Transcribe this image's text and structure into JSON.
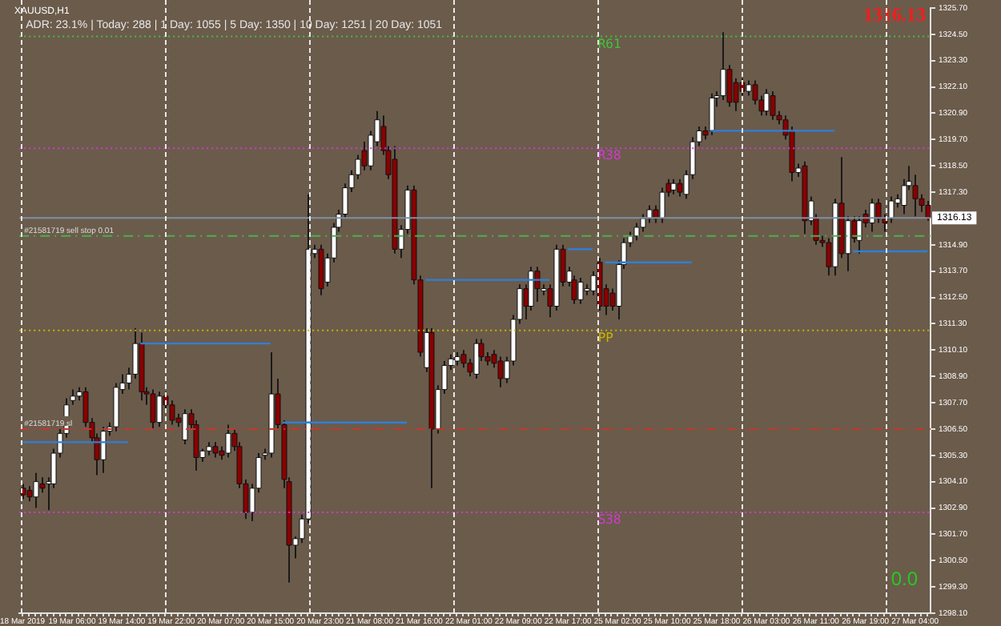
{
  "chart_data": {
    "type": "candlestick",
    "title": "XAUUSD,H1",
    "annotations": [
      "ADR: 23.1% | Today: 288 | 1 Day: 1055 | 5 Day: 1350 | 10 Day: 1251 | 20 Day: 1051",
      "1316.13",
      "0.0"
    ],
    "categories": [
      "18 Mar 2019",
      null,
      null,
      null,
      null,
      null,
      null,
      null,
      "19 Mar 06:00",
      null,
      null,
      null,
      null,
      null,
      null,
      null,
      "19 Mar 14:00",
      null,
      null,
      null,
      null,
      null,
      null,
      null,
      "19 Mar 22:00",
      null,
      null,
      null,
      null,
      null,
      null,
      null,
      "20 Mar 07:00",
      null,
      null,
      null,
      null,
      null,
      null,
      null,
      "20 Mar 15:00",
      null,
      null,
      null,
      null,
      null,
      null,
      null,
      "20 Mar 23:00",
      null,
      null,
      null,
      null,
      null,
      null,
      null,
      "21 Mar 08:00",
      null,
      null,
      null,
      null,
      null,
      null,
      null,
      "21 Mar 16:00",
      null,
      null,
      null,
      null,
      null,
      null,
      null,
      "22 Mar 01:00",
      null,
      null,
      null,
      null,
      null,
      null,
      null,
      "22 Mar 09:00",
      null,
      null,
      null,
      null,
      null,
      null,
      null,
      "22 Mar 17:00",
      null,
      null,
      null,
      null,
      null,
      null,
      null,
      "25 Mar 02:00",
      null,
      null,
      null,
      null,
      null,
      null,
      null,
      "25 Mar 10:00",
      null,
      null,
      null,
      null,
      null,
      null,
      null,
      "25 Mar 18:00",
      null,
      null,
      null,
      null,
      null,
      null,
      null,
      "26 Mar 03:00",
      null,
      null,
      null,
      null,
      null,
      null,
      null,
      "26 Mar 11:00",
      null,
      null,
      null,
      null,
      null,
      null,
      null,
      "26 Mar 19:00",
      null,
      null,
      null,
      null,
      null,
      null,
      null,
      "27 Mar 04:00",
      null,
      null
    ],
    "ohlc": [
      [
        1303.8,
        1304.0,
        1303.3,
        1303.5
      ],
      [
        1303.7,
        1303.9,
        1303.2,
        1303.4
      ],
      [
        1303.4,
        1304.5,
        1302.9,
        1304.1
      ],
      [
        1304.0,
        1304.3,
        1303.6,
        1303.8
      ],
      [
        1304.0,
        1304.3,
        1302.8,
        1304.1
      ],
      [
        1304.0,
        1305.6,
        1303.8,
        1305.4
      ],
      [
        1305.4,
        1306.5,
        1305.2,
        1306.3
      ],
      [
        1306.3,
        1307.9,
        1306.1,
        1307.6
      ],
      [
        1307.8,
        1308.3,
        1307.6,
        1308.0
      ],
      [
        1308.0,
        1308.4,
        1307.8,
        1308.2
      ],
      [
        1308.2,
        1308.4,
        1306.6,
        1306.8
      ],
      [
        1306.8,
        1307.0,
        1305.9,
        1306.1
      ],
      [
        1306.1,
        1306.3,
        1304.4,
        1305.1
      ],
      [
        1305.1,
        1306.6,
        1304.5,
        1306.4
      ],
      [
        1306.4,
        1306.8,
        1306.2,
        1306.6
      ],
      [
        1306.6,
        1308.6,
        1306.4,
        1308.4
      ],
      [
        1308.3,
        1309.0,
        1308.1,
        1308.6
      ],
      [
        1308.6,
        1309.3,
        1308.3,
        1309.0
      ],
      [
        1309.0,
        1311.1,
        1308.8,
        1310.4
      ],
      [
        1310.4,
        1310.9,
        1307.8,
        1308.2
      ],
      [
        1308.2,
        1308.4,
        1307.6,
        1308.1
      ],
      [
        1308.1,
        1308.3,
        1306.5,
        1306.8
      ],
      [
        1306.8,
        1308.2,
        1306.6,
        1308.0
      ],
      [
        1308.0,
        1308.2,
        1307.4,
        1307.6
      ],
      [
        1307.6,
        1307.8,
        1306.7,
        1306.9
      ],
      [
        1307.0,
        1307.2,
        1306.6,
        1306.8
      ],
      [
        1306.0,
        1307.4,
        1305.8,
        1307.2
      ],
      [
        1307.2,
        1307.4,
        1306.5,
        1306.7
      ],
      [
        1306.7,
        1306.9,
        1304.6,
        1305.2
      ],
      [
        1305.2,
        1305.6,
        1305.0,
        1305.5
      ],
      [
        1305.5,
        1305.9,
        1305.3,
        1305.7
      ],
      [
        1305.7,
        1305.9,
        1305.2,
        1305.4
      ],
      [
        1305.5,
        1305.7,
        1305.1,
        1305.3
      ],
      [
        1305.4,
        1306.7,
        1305.2,
        1306.3
      ],
      [
        1306.3,
        1306.5,
        1305.5,
        1305.7
      ],
      [
        1305.7,
        1305.9,
        1303.8,
        1304.0
      ],
      [
        1304.0,
        1304.2,
        1302.4,
        1302.7
      ],
      [
        1302.7,
        1304.0,
        1302.3,
        1303.8
      ],
      [
        1303.8,
        1305.4,
        1303.6,
        1305.2
      ],
      [
        1305.3,
        1305.6,
        1305.1,
        1305.4
      ],
      [
        1305.4,
        1310.0,
        1305.2,
        1308.1
      ],
      [
        1308.1,
        1308.8,
        1306.5,
        1306.7
      ],
      [
        1306.7,
        1306.9,
        1303.8,
        1304.2
      ],
      [
        1304.1,
        1304.3,
        1299.5,
        1301.2
      ],
      [
        1301.2,
        1301.6,
        1300.6,
        1301.5
      ],
      [
        1301.5,
        1302.6,
        1301.3,
        1302.4
      ],
      [
        1302.4,
        1317.2,
        1302.2,
        1314.7
      ],
      [
        1314.5,
        1314.9,
        1314.3,
        1314.7
      ],
      [
        1314.7,
        1314.9,
        1312.6,
        1312.9
      ],
      [
        1313.2,
        1314.5,
        1313.0,
        1314.3
      ],
      [
        1314.3,
        1315.9,
        1314.1,
        1315.7
      ],
      [
        1315.7,
        1316.5,
        1315.5,
        1316.3
      ],
      [
        1316.3,
        1317.7,
        1316.1,
        1317.5
      ],
      [
        1317.5,
        1318.3,
        1317.3,
        1318.1
      ],
      [
        1318.1,
        1319.0,
        1317.9,
        1318.8
      ],
      [
        1319.2,
        1319.6,
        1318.3,
        1318.5
      ],
      [
        1318.5,
        1320.1,
        1318.3,
        1319.9
      ],
      [
        1319.6,
        1321.0,
        1319.4,
        1320.6
      ],
      [
        1320.3,
        1320.8,
        1319.0,
        1319.2
      ],
      [
        1319.2,
        1319.4,
        1317.9,
        1318.1
      ],
      [
        1318.8,
        1319.4,
        1314.5,
        1314.7
      ],
      [
        1314.7,
        1315.8,
        1314.3,
        1315.6
      ],
      [
        1315.6,
        1317.6,
        1315.4,
        1317.4
      ],
      [
        1317.4,
        1317.6,
        1313.1,
        1313.3
      ],
      [
        1313.3,
        1313.5,
        1309.8,
        1310.0
      ],
      [
        1309.3,
        1311.1,
        1309.1,
        1310.9
      ],
      [
        1310.9,
        1311.1,
        1303.8,
        1306.5
      ],
      [
        1306.5,
        1308.5,
        1306.3,
        1308.3
      ],
      [
        1308.3,
        1309.6,
        1308.1,
        1309.4
      ],
      [
        1309.4,
        1309.9,
        1309.2,
        1309.7
      ],
      [
        1309.6,
        1310.0,
        1309.4,
        1309.8
      ],
      [
        1309.9,
        1310.1,
        1309.3,
        1309.5
      ],
      [
        1309.5,
        1309.7,
        1308.9,
        1309.1
      ],
      [
        1309.0,
        1310.6,
        1308.8,
        1310.4
      ],
      [
        1310.4,
        1310.6,
        1309.6,
        1309.8
      ],
      [
        1309.8,
        1310.0,
        1309.4,
        1309.6
      ],
      [
        1309.9,
        1310.1,
        1309.3,
        1309.5
      ],
      [
        1309.6,
        1309.8,
        1308.4,
        1308.8
      ],
      [
        1308.8,
        1309.8,
        1308.6,
        1309.6
      ],
      [
        1309.6,
        1311.7,
        1309.4,
        1311.5
      ],
      [
        1311.5,
        1313.1,
        1311.3,
        1312.9
      ],
      [
        1312.9,
        1313.1,
        1311.5,
        1312.1
      ],
      [
        1312.1,
        1313.9,
        1311.9,
        1313.7
      ],
      [
        1313.7,
        1313.9,
        1312.3,
        1312.9
      ],
      [
        1312.8,
        1313.1,
        1312.6,
        1312.9
      ],
      [
        1312.9,
        1313.1,
        1311.6,
        1312.1
      ],
      [
        1312.1,
        1314.9,
        1311.9,
        1314.7
      ],
      [
        1314.7,
        1314.9,
        1313.0,
        1313.2
      ],
      [
        1313.2,
        1313.9,
        1313.0,
        1313.7
      ],
      [
        1313.3,
        1313.5,
        1312.2,
        1312.4
      ],
      [
        1312.4,
        1313.4,
        1312.2,
        1313.2
      ],
      [
        1312.8,
        1313.1,
        1312.6,
        1312.9
      ],
      [
        1312.8,
        1313.7,
        1312.6,
        1313.5
      ],
      [
        1314.1,
        1314.3,
        1311.9,
        1312.1
      ],
      [
        1312.9,
        1313.1,
        1311.7,
        1312.1
      ],
      [
        1312.7,
        1312.9,
        1311.9,
        1312.1
      ],
      [
        1312.1,
        1314.2,
        1311.5,
        1314.0
      ],
      [
        1314.0,
        1315.2,
        1313.8,
        1315.0
      ],
      [
        1315.0,
        1315.5,
        1314.8,
        1315.3
      ],
      [
        1315.3,
        1315.9,
        1315.1,
        1315.7
      ],
      [
        1315.7,
        1316.3,
        1315.5,
        1316.1
      ],
      [
        1316.1,
        1316.7,
        1315.9,
        1316.5
      ],
      [
        1316.5,
        1316.7,
        1315.9,
        1316.1
      ],
      [
        1316.1,
        1317.5,
        1315.9,
        1317.3
      ],
      [
        1317.7,
        1317.9,
        1317.1,
        1317.3
      ],
      [
        1317.4,
        1317.9,
        1317.2,
        1317.7
      ],
      [
        1317.7,
        1317.9,
        1317.1,
        1317.3
      ],
      [
        1317.2,
        1318.3,
        1317.0,
        1318.1
      ],
      [
        1318.1,
        1319.8,
        1317.9,
        1319.6
      ],
      [
        1319.6,
        1320.3,
        1319.4,
        1320.1
      ],
      [
        1320.1,
        1320.3,
        1319.7,
        1319.9
      ],
      [
        1320.1,
        1321.8,
        1319.9,
        1321.6
      ],
      [
        1321.6,
        1321.9,
        1321.2,
        1321.7
      ],
      [
        1321.7,
        1324.6,
        1321.5,
        1322.9
      ],
      [
        1322.9,
        1323.1,
        1321.2,
        1321.4
      ],
      [
        1322.3,
        1322.5,
        1321.0,
        1321.4
      ],
      [
        1322.3,
        1322.5,
        1321.7,
        1321.9
      ],
      [
        1321.9,
        1322.4,
        1321.7,
        1322.2
      ],
      [
        1322.2,
        1322.4,
        1321.3,
        1321.5
      ],
      [
        1321.5,
        1321.7,
        1320.8,
        1321.0
      ],
      [
        1321.0,
        1322.0,
        1320.8,
        1321.8
      ],
      [
        1321.7,
        1321.9,
        1320.6,
        1320.8
      ],
      [
        1320.8,
        1321.0,
        1320.4,
        1320.6
      ],
      [
        1320.6,
        1320.8,
        1319.7,
        1319.9
      ],
      [
        1320.1,
        1320.3,
        1317.8,
        1318.2
      ],
      [
        1318.2,
        1318.6,
        1318.0,
        1318.4
      ],
      [
        1318.5,
        1318.7,
        1315.4,
        1316.0
      ],
      [
        1316.0,
        1317.1,
        1315.8,
        1316.9
      ],
      [
        1316.1,
        1316.3,
        1314.9,
        1315.1
      ],
      [
        1315.1,
        1315.3,
        1314.8,
        1315.0
      ],
      [
        1315.0,
        1315.2,
        1313.5,
        1313.9
      ],
      [
        1313.9,
        1317.0,
        1313.5,
        1316.8
      ],
      [
        1316.8,
        1318.9,
        1314.3,
        1314.5
      ],
      [
        1314.5,
        1316.2,
        1313.7,
        1316.0
      ],
      [
        1316.0,
        1316.2,
        1315.0,
        1315.2
      ],
      [
        1315.1,
        1316.2,
        1314.5,
        1316.0
      ],
      [
        1316.3,
        1316.5,
        1315.7,
        1315.9
      ],
      [
        1315.9,
        1317.0,
        1315.5,
        1316.8
      ],
      [
        1316.8,
        1317.0,
        1315.9,
        1316.1
      ],
      [
        1316.1,
        1316.3,
        1315.5,
        1315.9
      ],
      [
        1316.1,
        1317.1,
        1315.9,
        1316.9
      ],
      [
        1316.8,
        1317.2,
        1316.6,
        1317.0
      ],
      [
        1316.7,
        1317.9,
        1316.3,
        1317.6
      ],
      [
        1317.6,
        1318.5,
        1317.4,
        1317.8
      ],
      [
        1317.6,
        1318.1,
        1316.2,
        1317.0
      ],
      [
        1317.0,
        1317.2,
        1316.4,
        1316.7
      ],
      [
        1316.7,
        1316.9,
        1316.0,
        1316.13
      ]
    ],
    "series": [
      {
        "type": "line",
        "color": "#2f7fd8",
        "values": [
          1305.9,
          1305.9,
          1305.9,
          1305.9,
          1305.9,
          1305.9,
          1305.9,
          1305.9,
          1305.9,
          1305.9,
          1305.9,
          1305.9,
          1305.9,
          1305.9,
          1305.9,
          1305.9,
          1305.9,
          1305.9,
          null,
          1310.4,
          1310.4,
          1310.4,
          1310.4,
          1310.4,
          1310.4,
          1310.4,
          1310.4,
          1310.4,
          1310.4,
          1310.4,
          1310.4,
          1310.4,
          1310.4,
          1310.4,
          1310.4,
          1310.4,
          1310.4,
          1310.4,
          1310.4,
          1310.4,
          1310.4,
          null,
          1306.8,
          1306.8,
          1306.8,
          1306.8,
          1306.8,
          1306.8,
          1306.8,
          1306.8,
          1306.8,
          1306.8,
          1306.8,
          1306.8,
          1306.8,
          1306.8,
          1306.8,
          1306.8,
          1306.8,
          1306.8,
          1306.8,
          1306.8,
          1306.8,
          null,
          null,
          1313.3,
          1313.3,
          1313.3,
          1313.3,
          1313.3,
          1313.3,
          1313.3,
          1313.3,
          1313.3,
          1313.3,
          1313.3,
          1313.3,
          1313.3,
          1313.3,
          1313.3,
          1313.3,
          1313.3,
          1313.3,
          1313.3,
          1313.3,
          1313.3,
          null,
          null,
          null,
          null,
          null,
          null,
          null,
          null,
          1314.1,
          1314.1,
          1314.1,
          1314.1,
          1314.1,
          1314.1,
          1314.1,
          1314.1,
          1314.1,
          1314.1,
          1314.1,
          1314.1,
          1314.1,
          1314.1,
          1314.1,
          null,
          null,
          1320.1,
          1320.1,
          1320.1,
          1320.1,
          1320.1,
          1320.1,
          1320.1,
          1320.1,
          1320.1,
          1320.1,
          1320.1,
          1320.1,
          1320.1,
          1320.1,
          1320.1,
          1320.1,
          1320.1,
          1320.1,
          1320.1,
          1320.1,
          1320.1,
          null,
          null,
          1314.6,
          1314.6,
          1314.6,
          1314.6,
          1314.6,
          1314.6,
          1314.6,
          1314.6,
          1314.6,
          1314.6,
          1314.6,
          1314.6,
          1314.6
        ]
      },
      {
        "type": "line",
        "color": "#2f7fd8",
        "values": [
          null,
          null,
          null,
          null,
          null,
          null,
          null,
          null,
          null,
          null,
          null,
          null,
          null,
          null,
          null,
          null,
          null,
          null,
          null,
          null,
          null,
          null,
          null,
          null,
          null,
          null,
          null,
          null,
          null,
          null,
          null,
          null,
          null,
          null,
          null,
          null,
          null,
          null,
          null,
          null,
          null,
          null,
          null,
          null,
          null,
          null,
          null,
          null,
          null,
          null,
          null,
          null,
          null,
          null,
          null,
          null,
          null,
          null,
          null,
          null,
          null,
          null,
          null,
          null,
          null,
          null,
          null,
          null,
          null,
          null,
          null,
          null,
          null,
          null,
          null,
          null,
          null,
          null,
          null,
          null,
          null,
          null,
          null,
          null,
          null,
          null,
          null,
          null,
          1314.7,
          1314.7,
          1314.7,
          1314.7,
          1314.7,
          null,
          null,
          null,
          null,
          null,
          null,
          null,
          null,
          null,
          null,
          null,
          null,
          null,
          null,
          null,
          null,
          null,
          null,
          null,
          null,
          null,
          null,
          null,
          null,
          null,
          null,
          null,
          null,
          null,
          null,
          null,
          null,
          null,
          null,
          null,
          null,
          null,
          null,
          null,
          null,
          null,
          null,
          null,
          null,
          null,
          null,
          null,
          null,
          null,
          null,
          null,
          null,
          null,
          null
        ]
      }
    ],
    "ylim": [
      1298.1,
      1325.7
    ],
    "yticks": [
      {
        "value": 1298.1,
        "label": "1298.10"
      },
      {
        "value": 1299.3,
        "label": "1299.30"
      },
      {
        "value": 1300.5,
        "label": "1300.50"
      },
      {
        "value": 1301.7,
        "label": "1301.70"
      },
      {
        "value": 1302.9,
        "label": "1302.90"
      },
      {
        "value": 1304.1,
        "label": "1304.10"
      },
      {
        "value": 1305.3,
        "label": "1305.30"
      },
      {
        "value": 1306.5,
        "label": "1306.50"
      },
      {
        "value": 1307.7,
        "label": "1307.70"
      },
      {
        "value": 1308.9,
        "label": "1308.90"
      },
      {
        "value": 1310.1,
        "label": "1310.10"
      },
      {
        "value": 1311.3,
        "label": "1311.30"
      },
      {
        "value": 1312.5,
        "label": "1312.50"
      },
      {
        "value": 1313.7,
        "label": "1313.70"
      },
      {
        "value": 1314.9,
        "label": "1314.90"
      },
      {
        "value": 1317.3,
        "label": "1317.30"
      },
      {
        "value": 1318.5,
        "label": "1318.50"
      },
      {
        "value": 1319.7,
        "label": "1319.70"
      },
      {
        "value": 1320.9,
        "label": "1320.90"
      },
      {
        "value": 1322.1,
        "label": "1322.10"
      },
      {
        "value": 1323.3,
        "label": "1323.30"
      },
      {
        "value": 1324.5,
        "label": "1324.50"
      },
      {
        "value": 1325.7,
        "label": "1325.70"
      }
    ],
    "ref_lines": [
      {
        "axis": "y",
        "value": 1316.13,
        "label": "1316.13",
        "color": "#7d90a8",
        "line_style": "solid"
      },
      {
        "axis": "y",
        "value": 1315.3,
        "label": "#21581719 sell stop 0.01",
        "color": "#4caf50",
        "line_style": "dashed"
      },
      {
        "axis": "y",
        "value": 1306.5,
        "label": "#21581719 sl",
        "color": "#c0392b",
        "line_style": "dashed"
      },
      {
        "axis": "y",
        "value": 1324.4,
        "label": "R61",
        "color": "#3ec43e",
        "line_style": "dotted"
      },
      {
        "axis": "y",
        "value": 1319.3,
        "label": "R38",
        "color": "#d43ad4",
        "line_style": "dotted"
      },
      {
        "axis": "y",
        "value": 1311.0,
        "label": "PP",
        "color": "#c8b400",
        "line_style": "dotted"
      },
      {
        "axis": "y",
        "value": 1302.7,
        "label": "S38",
        "color": "#d43ad4",
        "line_style": "dotted"
      }
    ]
  }
}
